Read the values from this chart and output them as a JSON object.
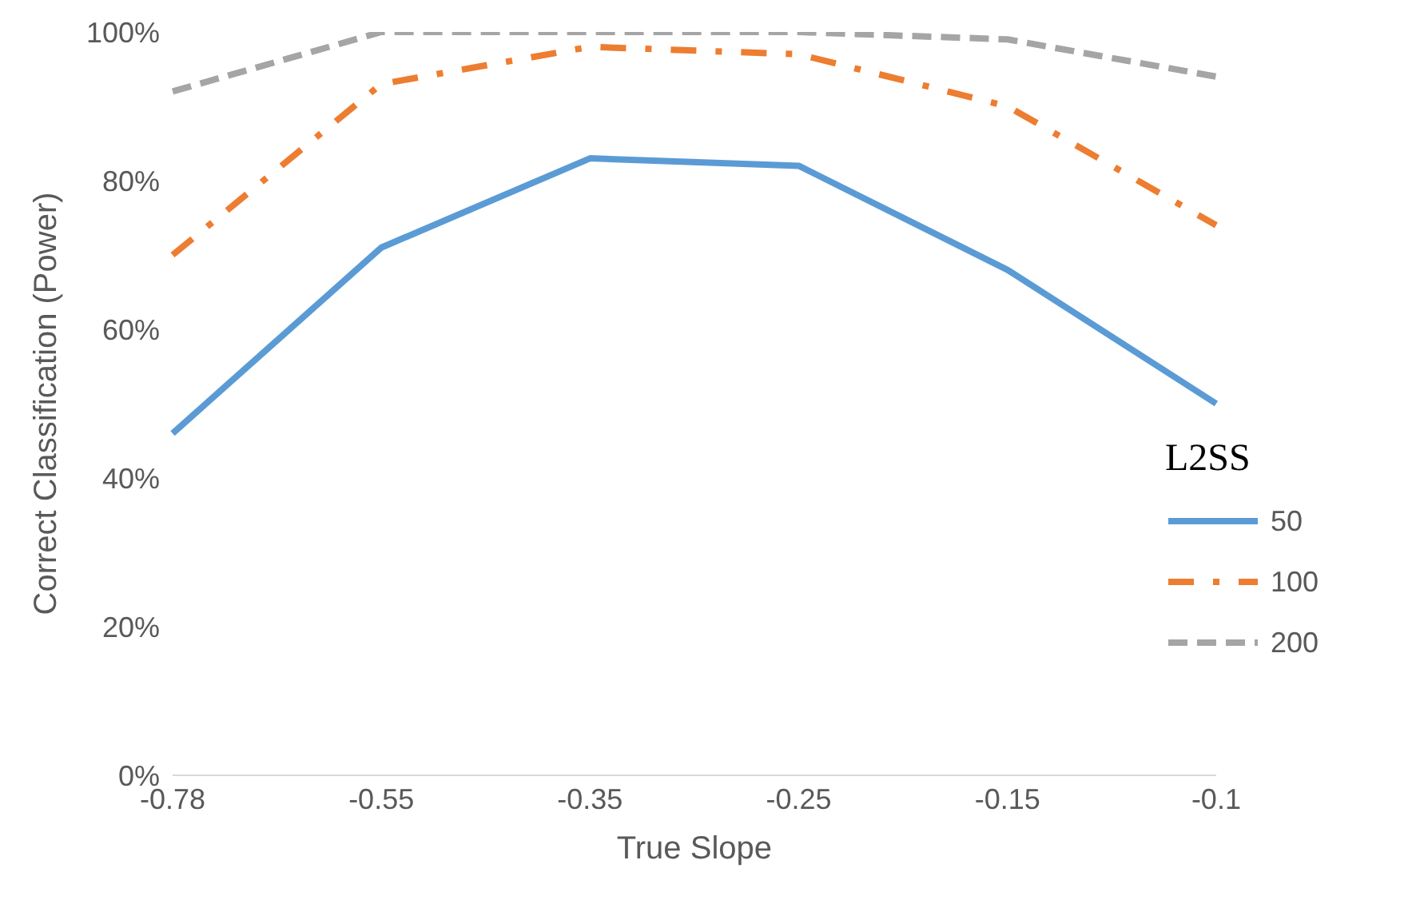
{
  "chart_data": {
    "type": "line",
    "xlabel": "True Slope",
    "ylabel": "Correct Classification (Power)",
    "legend_title": "L2SS",
    "legend": "bottom right",
    "grid": false,
    "marker": "none",
    "categories": [
      "-0.78",
      "-0.55",
      "-0.35",
      "-0.25",
      "-0.15",
      "-0.1"
    ],
    "ylim": [
      0,
      100
    ],
    "yticks": [
      {
        "value": 0,
        "label": "0%"
      },
      {
        "value": 20,
        "label": "20%"
      },
      {
        "value": 40,
        "label": "40%"
      },
      {
        "value": 60,
        "label": "60%"
      },
      {
        "value": 80,
        "label": "80%"
      },
      {
        "value": 100,
        "label": "100%"
      }
    ],
    "series": [
      {
        "name": "50",
        "color": "#5b9bd5",
        "line_style": "solid",
        "values": [
          46,
          71,
          83,
          82,
          68,
          50
        ]
      },
      {
        "name": "100",
        "color": "#ed7d31",
        "line_style": "dashdot",
        "values": [
          70,
          93,
          98,
          97,
          90,
          74
        ]
      },
      {
        "name": "200",
        "color": "#a5a5a5",
        "line_style": "dashed",
        "values": [
          92,
          100,
          100,
          100,
          99,
          94
        ]
      }
    ]
  }
}
